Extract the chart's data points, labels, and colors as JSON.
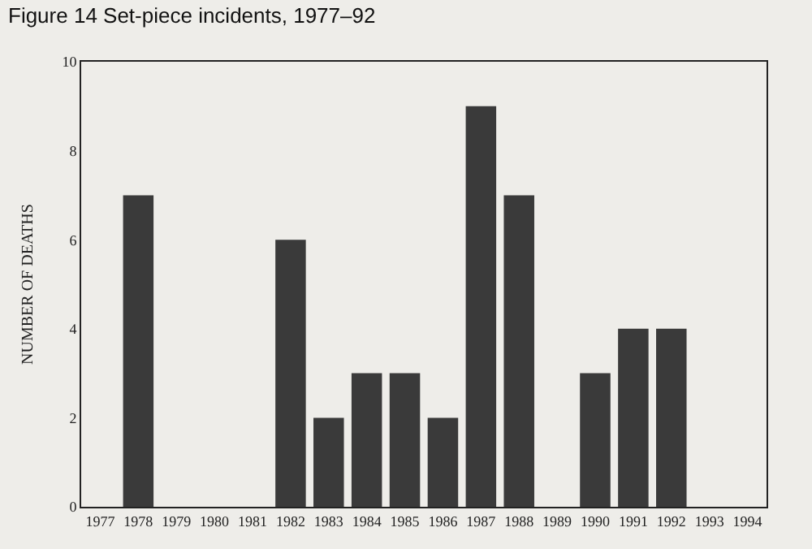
{
  "chart_data": {
    "type": "bar",
    "title": "Figure 14 Set-piece incidents, 1977–92",
    "ylabel": "NUMBER OF DEATHS",
    "categories": [
      "1977",
      "1978",
      "1979",
      "1980",
      "1981",
      "1982",
      "1983",
      "1984",
      "1985",
      "1986",
      "1987",
      "1988",
      "1989",
      "1990",
      "1991",
      "1992",
      "1993",
      "1994"
    ],
    "values": [
      0,
      7,
      0,
      0,
      0,
      6,
      2,
      3,
      3,
      2,
      9,
      7,
      0,
      3,
      4,
      4,
      0,
      0
    ],
    "color": "#3a3a3a",
    "ylim": [
      0,
      10
    ],
    "yticks": [
      0,
      2,
      4,
      6,
      8,
      10
    ]
  }
}
